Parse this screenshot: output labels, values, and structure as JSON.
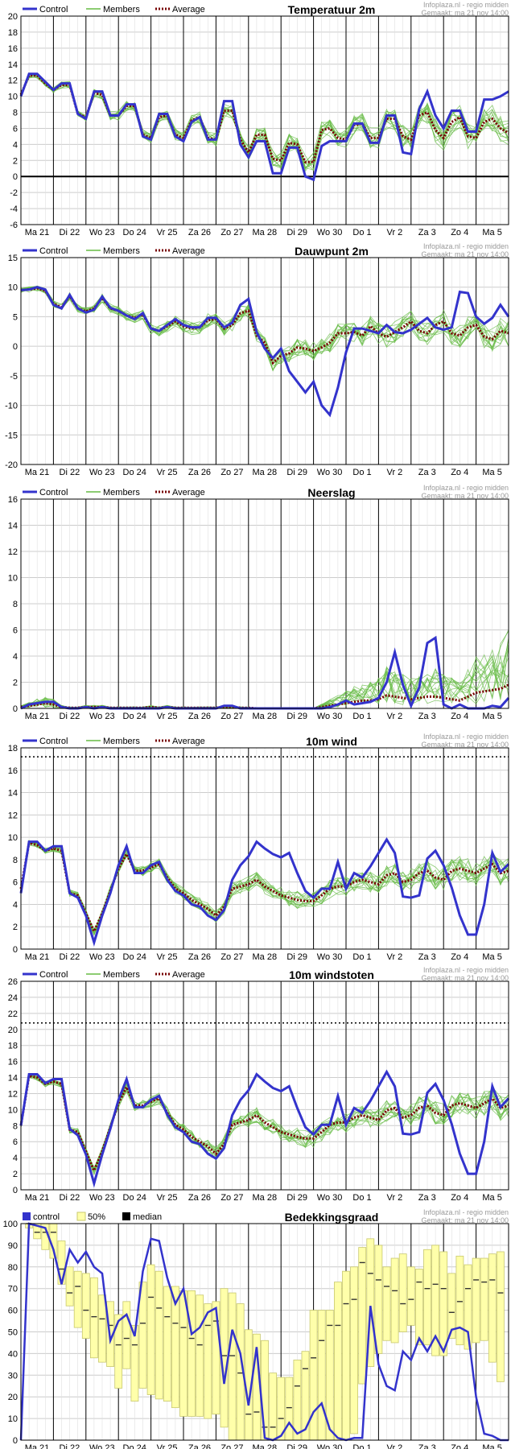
{
  "colors": {
    "control": "#3333cc",
    "members": "#66bb44",
    "average": "#770000",
    "cloud_box": "#ffffaa",
    "cloud_box_edge": "#c8c86e",
    "median": "#333333",
    "grid": "#cccccc",
    "day_line": "#000000",
    "credit": "#999999"
  },
  "x_axis": {
    "day_labels": [
      "Ma 21",
      "Di 22",
      "Wo 23",
      "Do 24",
      "Vr 25",
      "Za 26",
      "Zo 27",
      "Ma 28",
      "Di 29",
      "Wo 30",
      "Do 1",
      "Vr 2",
      "Za 3",
      "Zo 4",
      "Ma 5"
    ],
    "n_steps": 61
  },
  "credit": {
    "line1": "Infoplaza.nl - regio midden",
    "line2": "Gemaakt: ma 21 nov 14:00"
  },
  "chart_data": [
    {
      "id": "temp",
      "type": "line",
      "title": "Temperatuur 2m",
      "legend": [
        "Control",
        "Members",
        "Average"
      ],
      "ylim": [
        -6,
        20
      ],
      "yticks": [
        -6,
        -4,
        -2,
        0,
        2,
        4,
        6,
        8,
        10,
        12,
        14,
        16,
        18,
        20
      ],
      "zero_line": 0,
      "threshold": null,
      "series": [
        {
          "name": "Control",
          "values": [
            10,
            12.8,
            12.8,
            11.8,
            10.8,
            11.6,
            11.6,
            7.8,
            7.2,
            10.6,
            10.6,
            7.6,
            7.6,
            9,
            9,
            5,
            4.6,
            7.8,
            7.8,
            5,
            4.4,
            6.8,
            7.4,
            4.6,
            4.6,
            9.4,
            9.4,
            4,
            2.4,
            4.4,
            4.4,
            0.4,
            0.4,
            3.6,
            3.6,
            0,
            -0.4,
            3.8,
            4.4,
            4.4,
            4.4,
            6.6,
            6.6,
            4.2,
            4.2,
            7.6,
            7.6,
            3,
            2.8,
            8.4,
            10.6,
            7.6,
            6,
            8.2,
            8.2,
            5.6,
            5.6,
            9.6,
            9.6,
            10,
            10.6
          ]
        },
        {
          "name": "Average",
          "values": [
            10.2,
            12.6,
            12.6,
            11.6,
            10.8,
            11.4,
            11.4,
            7.8,
            7.4,
            10.4,
            10.2,
            7.6,
            7.6,
            8.8,
            8.8,
            5.2,
            4.8,
            7.4,
            7.6,
            5.2,
            4.8,
            7,
            7.4,
            4.8,
            4.6,
            8.2,
            8.2,
            4.6,
            3,
            5.2,
            5.2,
            2.2,
            2,
            4.2,
            4,
            1.8,
            1.8,
            5.8,
            6,
            4.8,
            4.6,
            6.4,
            6.6,
            4.8,
            4.8,
            7.2,
            7.2,
            5,
            4.6,
            7.6,
            8,
            5.8,
            4.8,
            6.8,
            7.4,
            5,
            4.8,
            6.8,
            7.2,
            6,
            5.4
          ]
        }
      ]
    },
    {
      "id": "dew",
      "type": "line",
      "title": "Dauwpunt 2m",
      "legend": [
        "Control",
        "Members",
        "Average"
      ],
      "ylim": [
        -20,
        15
      ],
      "yticks": [
        -20,
        -15,
        -10,
        -5,
        0,
        5,
        10,
        15
      ],
      "zero_line": null,
      "threshold": null,
      "series": [
        {
          "name": "Control",
          "values": [
            9.5,
            9.6,
            10,
            9.6,
            7,
            6.4,
            8.7,
            6.4,
            5.7,
            6.2,
            8.4,
            6.5,
            6,
            5.2,
            4.6,
            5.6,
            3,
            2.6,
            3.6,
            4.6,
            3.6,
            3.2,
            3.2,
            4.8,
            4.8,
            3.2,
            4,
            7,
            8,
            2.4,
            -0.4,
            -2,
            -0.4,
            -4.2,
            -6,
            -7.8,
            -6,
            -10,
            -11.6,
            -7,
            -1,
            3,
            3,
            2.6,
            2.2,
            3.6,
            2.4,
            2.2,
            2.8,
            3.8,
            4.8,
            3.2,
            2.8,
            3.2,
            9.2,
            9,
            5,
            3.8,
            4.8,
            7,
            5
          ]
        },
        {
          "name": "Average",
          "values": [
            9.5,
            9.6,
            9.8,
            9.4,
            7.2,
            6.6,
            8.5,
            6.4,
            5.9,
            6.4,
            8.2,
            6.4,
            6,
            5.2,
            4.8,
            5.4,
            3,
            2.6,
            3.4,
            4.2,
            3.4,
            3,
            3.2,
            4.4,
            4.6,
            3,
            3.6,
            5.6,
            6,
            1.8,
            0.6,
            -2.8,
            -1.6,
            -1.2,
            -0.2,
            -0.4,
            -0.8,
            -0.2,
            0.6,
            2.2,
            2.2,
            2.4,
            1.8,
            3.4,
            2.2,
            1.6,
            2.4,
            3.2,
            4.2,
            2.6,
            2.2,
            3.6,
            4.2,
            2.2,
            1.8,
            3.2,
            3.6,
            1.6,
            1.2,
            2.6,
            2.2
          ]
        }
      ]
    },
    {
      "id": "rain",
      "type": "line",
      "title": "Neerslag",
      "legend": [
        "Control",
        "Members",
        "Average"
      ],
      "ylim": [
        0,
        16
      ],
      "yticks": [
        0,
        2,
        4,
        6,
        8,
        10,
        12,
        14,
        16
      ],
      "zero_line": null,
      "threshold": null,
      "series": [
        {
          "name": "Control",
          "values": [
            0,
            0.3,
            0.4,
            0.5,
            0.5,
            0.1,
            0,
            0,
            0.1,
            0,
            0.1,
            0,
            0,
            0,
            0,
            0,
            0,
            0,
            0.1,
            0,
            0,
            0,
            0,
            0,
            0,
            0.2,
            0.2,
            0,
            0,
            0,
            0,
            0,
            0,
            0,
            0,
            0,
            0,
            0,
            0.1,
            0.3,
            0.6,
            0.3,
            0.4,
            0.5,
            0.8,
            2,
            4.3,
            1.8,
            0.2,
            1.6,
            5,
            5.4,
            0.3,
            0,
            0.3,
            0,
            0,
            0,
            0.2,
            0.1,
            0.8
          ]
        },
        {
          "name": "Average",
          "values": [
            0.1,
            0.2,
            0.3,
            0.4,
            0.3,
            0.1,
            0.05,
            0.05,
            0.1,
            0.1,
            0.1,
            0.05,
            0.05,
            0.05,
            0.05,
            0.05,
            0.1,
            0.05,
            0.1,
            0.05,
            0.05,
            0.05,
            0.05,
            0.05,
            0.05,
            0.1,
            0.1,
            0.05,
            0.05,
            0,
            0,
            0,
            0,
            0,
            0,
            0,
            0,
            0.1,
            0.2,
            0.3,
            0.4,
            0.5,
            0.6,
            0.6,
            0.7,
            1,
            0.9,
            0.8,
            0.7,
            0.8,
            0.9,
            0.9,
            0.8,
            0.7,
            0.6,
            0.9,
            1.2,
            1.3,
            1.4,
            1.5,
            1.8
          ]
        }
      ]
    },
    {
      "id": "wind",
      "type": "line",
      "title": "10m wind",
      "legend": [
        "Control",
        "Members",
        "Average"
      ],
      "ylim": [
        0,
        18
      ],
      "yticks": [
        0,
        2,
        4,
        6,
        8,
        10,
        12,
        14,
        16,
        18
      ],
      "zero_line": null,
      "threshold": 17.2,
      "series": [
        {
          "name": "Control",
          "values": [
            5,
            9.6,
            9.6,
            8.8,
            9.2,
            9.2,
            5,
            4.6,
            3,
            0.6,
            3,
            5,
            7.5,
            9.2,
            6.8,
            6.8,
            7.5,
            7.8,
            6.2,
            5.2,
            4.8,
            4,
            3.8,
            3,
            2.6,
            3.5,
            6.2,
            7.5,
            8.3,
            9.6,
            9,
            8.5,
            8.2,
            8.6,
            6.8,
            5.2,
            4.6,
            5.4,
            5.4,
            7.8,
            5.4,
            6.8,
            6.4,
            7.4,
            8.6,
            9.8,
            8.6,
            4.7,
            4.6,
            4.8,
            8.1,
            8.8,
            7.5,
            5.5,
            3,
            1.3,
            1.3,
            4,
            8.6,
            6.9,
            7.6
          ]
        },
        {
          "name": "Average",
          "values": [
            5.4,
            9.5,
            9.3,
            8.8,
            9,
            8.8,
            5,
            4.8,
            3.2,
            1.6,
            3.2,
            5.2,
            7.2,
            8.5,
            7,
            7,
            7.3,
            7.6,
            6.4,
            5.4,
            5,
            4.4,
            4,
            3.6,
            3,
            3.8,
            5.4,
            5.6,
            5.8,
            6.2,
            5.6,
            5.2,
            4.8,
            4.6,
            4.4,
            4.3,
            4.3,
            4.8,
            5.4,
            5.6,
            5.6,
            6,
            6.2,
            6,
            5.8,
            6.6,
            6.8,
            6,
            6.2,
            6.8,
            7,
            6.4,
            6.2,
            7,
            7.2,
            7,
            6.8,
            7.2,
            7.6,
            6.8,
            7
          ]
        }
      ]
    },
    {
      "id": "gust",
      "type": "line",
      "title": "10m windstoten",
      "legend": [
        "Control",
        "Members",
        "Average"
      ],
      "ylim": [
        0,
        26
      ],
      "yticks": [
        0,
        2,
        4,
        6,
        8,
        10,
        12,
        14,
        16,
        18,
        20,
        22,
        24,
        26
      ],
      "zero_line": null,
      "threshold": 20.8,
      "series": [
        {
          "name": "Control",
          "values": [
            8,
            14.4,
            14.4,
            13.3,
            13.8,
            13.8,
            7.6,
            6.8,
            4.4,
            0.8,
            4.4,
            7.6,
            11.2,
            13.8,
            10.3,
            10.3,
            11.2,
            11.7,
            9.4,
            7.8,
            7.2,
            6,
            5.7,
            4.5,
            3.9,
            5.2,
            9.3,
            11.2,
            12.4,
            14.4,
            13.5,
            12.7,
            12.3,
            12.9,
            10.2,
            7.8,
            6.9,
            8.1,
            8.1,
            11.7,
            8.1,
            10.2,
            9.6,
            11.1,
            12.9,
            14.7,
            12.9,
            7,
            6.9,
            7.2,
            12.1,
            13.2,
            11.2,
            8.2,
            4.5,
            2,
            2,
            6,
            12.9,
            10.3,
            11.4
          ]
        },
        {
          "name": "Average",
          "values": [
            8,
            14.2,
            14,
            13.2,
            13.5,
            13.2,
            7.5,
            7.2,
            4.8,
            2.4,
            4.8,
            7.8,
            10.8,
            12.8,
            10.5,
            10.5,
            11,
            11.4,
            9.6,
            8.1,
            7.5,
            6.6,
            6,
            5.4,
            4.5,
            5.7,
            8.1,
            8.4,
            8.7,
            9.3,
            8.4,
            7.8,
            7.2,
            6.9,
            6.6,
            6.4,
            6.4,
            7.2,
            8.1,
            8.4,
            8.4,
            9,
            9.3,
            9,
            8.7,
            9.9,
            10.2,
            9,
            9.3,
            10.2,
            10.5,
            9.6,
            9.3,
            10.5,
            10.8,
            10.5,
            10.2,
            10.8,
            11.4,
            10.2,
            10.5
          ]
        }
      ]
    },
    {
      "id": "cloud",
      "type": "box",
      "title": "Bedekkingsgraad",
      "legend": [
        "control",
        "50%",
        "median"
      ],
      "ylim": [
        0,
        100
      ],
      "yticks": [
        0,
        10,
        20,
        30,
        40,
        50,
        60,
        70,
        80,
        90,
        100
      ],
      "zero_line": null,
      "threshold": null,
      "control": [
        0,
        100,
        99,
        98,
        88,
        72,
        88,
        82,
        87,
        80,
        77,
        46,
        55,
        58,
        48,
        78,
        93,
        92,
        75,
        63,
        70,
        49,
        52,
        59,
        61,
        26,
        51,
        40,
        16,
        43,
        1,
        0,
        2,
        8,
        3,
        5,
        13,
        17,
        5,
        1,
        0,
        1,
        1,
        62,
        35,
        25,
        23,
        41,
        37,
        47,
        41,
        48,
        41,
        51,
        52,
        50,
        20,
        3,
        2,
        0,
        0
      ],
      "box_low": [
        null,
        98,
        93,
        88,
        84,
        72,
        62,
        52,
        47,
        38,
        36,
        34,
        24,
        33,
        18,
        24,
        21,
        19,
        18,
        15,
        11,
        11,
        11,
        10,
        12,
        6,
        0,
        0,
        0,
        0,
        0,
        0,
        0,
        0,
        0,
        0,
        0,
        0,
        0,
        0,
        0,
        3,
        26,
        34,
        40,
        46,
        45,
        50,
        53,
        44,
        44,
        39,
        39,
        47,
        44,
        42,
        45,
        46,
        36,
        27,
        null
      ],
      "box_high": [
        null,
        100,
        100,
        100,
        100,
        92,
        80,
        78,
        77,
        75,
        67,
        64,
        58,
        64,
        53,
        73,
        81,
        78,
        71,
        71,
        69,
        69,
        67,
        63,
        64,
        70,
        68,
        63,
        51,
        49,
        46,
        31,
        29,
        29,
        37,
        41,
        60,
        60,
        60,
        73,
        78,
        80,
        89,
        93,
        90,
        80,
        84,
        86,
        80,
        79,
        88,
        90,
        87,
        77,
        85,
        81,
        84,
        84,
        86,
        87,
        null
      ],
      "median": [
        null,
        100,
        96,
        96,
        96,
        79,
        68,
        71,
        60,
        57,
        56,
        53,
        44,
        47,
        44,
        54,
        66,
        61,
        57,
        54,
        52,
        47,
        44,
        53,
        55,
        39,
        39,
        31,
        12,
        13,
        6,
        6,
        10,
        15,
        25,
        33,
        38,
        46,
        53,
        53,
        63,
        65,
        82,
        77,
        74,
        71,
        69,
        63,
        65,
        73,
        70,
        72,
        70,
        59,
        64,
        70,
        74,
        73,
        74,
        68,
        null
      ]
    }
  ]
}
